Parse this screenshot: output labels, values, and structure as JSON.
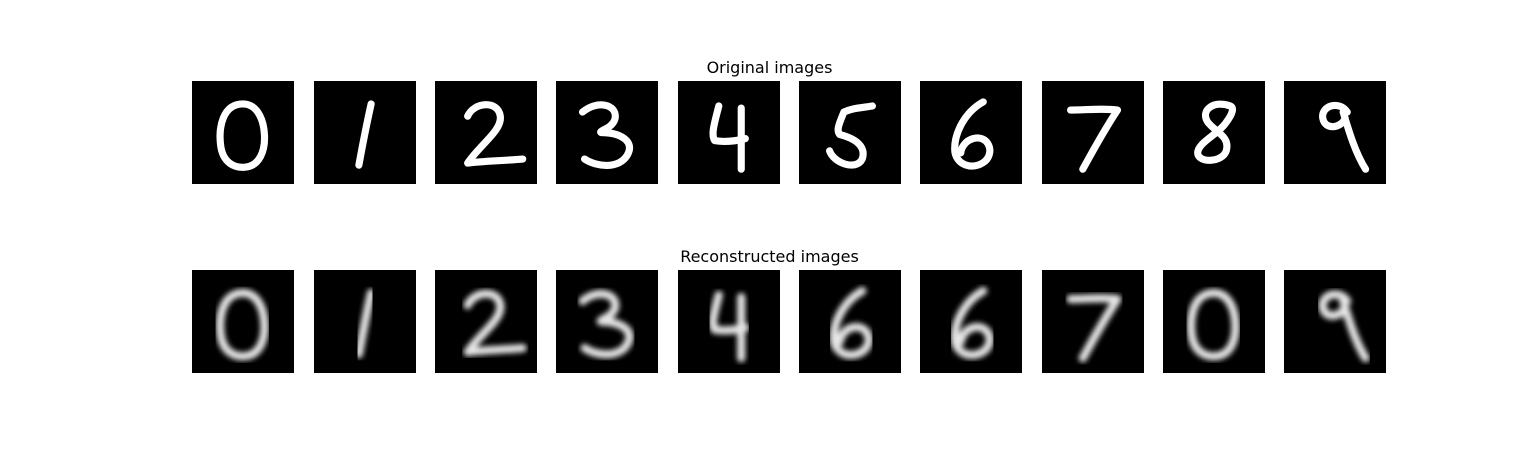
{
  "rows": [
    {
      "title": "Original images",
      "digits": [
        "0",
        "1",
        "2",
        "3",
        "4",
        "5",
        "6",
        "7",
        "8",
        "9"
      ],
      "rendering": "sharp"
    },
    {
      "title": "Reconstructed images",
      "digits": [
        "0",
        "1",
        "2",
        "3",
        "4",
        "6",
        "6",
        "7",
        "0",
        "9"
      ],
      "rendering": "blurred"
    }
  ],
  "colors": {
    "background": "#000000",
    "stroke": "#ffffff"
  }
}
